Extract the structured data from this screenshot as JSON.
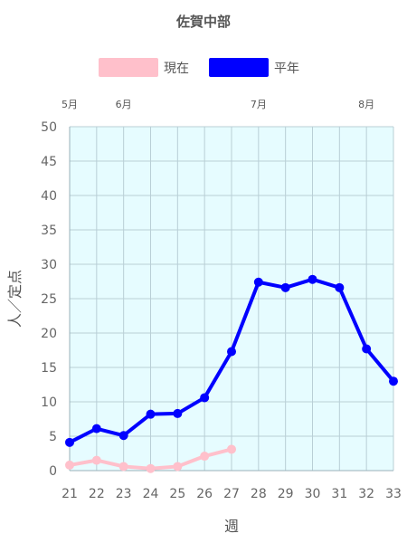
{
  "chart_data": {
    "type": "line",
    "title": "佐賀中部",
    "xlabel": "週",
    "ylabel": "人／定点",
    "categories": [
      "21",
      "22",
      "23",
      "24",
      "25",
      "26",
      "27",
      "28",
      "29",
      "30",
      "31",
      "32",
      "33"
    ],
    "ylim": [
      0,
      50
    ],
    "yticks": [
      "0",
      "5",
      "10",
      "15",
      "20",
      "25",
      "30",
      "35",
      "40",
      "45",
      "50"
    ],
    "month_labels": [
      {
        "label": "5月",
        "week": 21
      },
      {
        "label": "6月",
        "week": 23
      },
      {
        "label": "7月",
        "week": 28
      },
      {
        "label": "8月",
        "week": 32
      }
    ],
    "series": [
      {
        "name": "現在",
        "color": "#ffc0cb",
        "values": [
          0.8,
          1.5,
          0.6,
          0.3,
          0.6,
          2.1,
          3.1,
          null,
          null,
          null,
          null,
          null,
          null
        ]
      },
      {
        "name": "平年",
        "color": "#0000ff",
        "values": [
          4.1,
          6.1,
          5.1,
          8.2,
          8.3,
          10.6,
          17.3,
          27.4,
          26.6,
          27.8,
          26.6,
          17.7,
          13.0
        ]
      }
    ],
    "plot_background": "#e6fcff",
    "grid": true,
    "legend_position": "top"
  }
}
